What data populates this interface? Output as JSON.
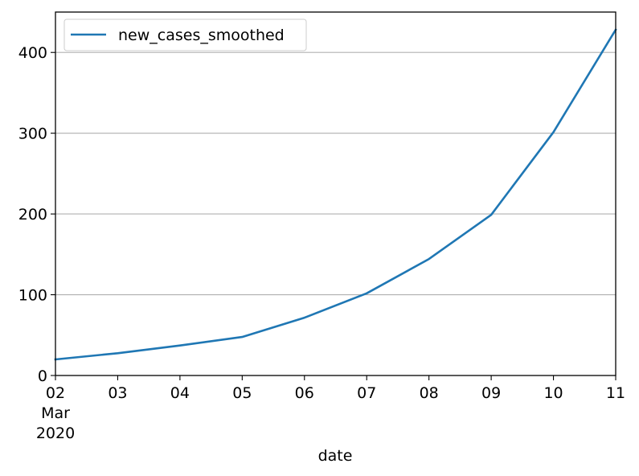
{
  "chart_data": {
    "type": "line",
    "title": "",
    "xlabel": "date",
    "ylabel": "",
    "x": [
      "2020-03-02",
      "2020-03-03",
      "2020-03-04",
      "2020-03-05",
      "2020-03-06",
      "2020-03-07",
      "2020-03-08",
      "2020-03-09",
      "2020-03-10",
      "2020-03-11"
    ],
    "x_tick_labels": [
      "02",
      "03",
      "04",
      "05",
      "06",
      "07",
      "08",
      "09",
      "10",
      "11"
    ],
    "x_tick_sublabel": [
      "Mar",
      "2020"
    ],
    "series": [
      {
        "name": "new_cases_smoothed",
        "color": "#1f77b4",
        "values": [
          19.9,
          27.6,
          37.1,
          47.7,
          71.6,
          101.7,
          144.3,
          198.9,
          301.4,
          428.1
        ]
      }
    ],
    "yticks": [
      0,
      100,
      200,
      300,
      400
    ],
    "ylim": [
      0,
      450
    ],
    "grid": "y",
    "legend": "upper-left"
  }
}
